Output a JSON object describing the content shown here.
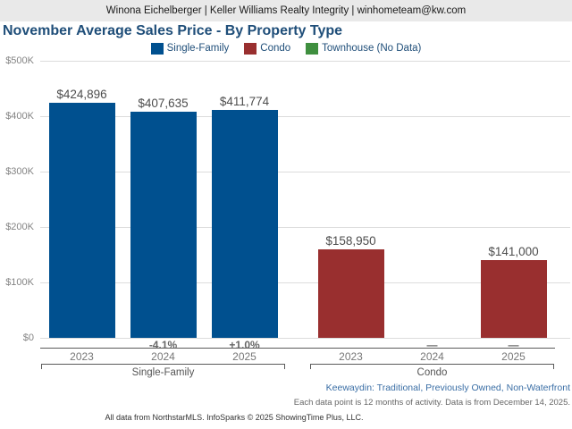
{
  "header": {
    "text": "Winona Eichelberger | Keller Williams Realty Integrity | winhometeam@kw.com"
  },
  "footer": {
    "filters": "Keewaydin: Traditional, Previously Owned, Non-Waterfront",
    "note": "Each data point is 12 months of activity. Data is from December 14, 2025.",
    "copyright": "All data from NorthstarMLS. InfoSparks © 2025 ShowingTime Plus, LLC."
  },
  "chart_data": {
    "type": "bar",
    "title": "November Average Sales Price - By Property Type",
    "xlabel": "",
    "ylabel": "",
    "ylim": [
      0,
      500000
    ],
    "ytick_labels": [
      "$0",
      "$100K",
      "$200K",
      "$300K",
      "$400K",
      "$500K"
    ],
    "grid": true,
    "legend_position": "top",
    "legend": [
      {
        "label": "Single-Family",
        "color": "#00508f"
      },
      {
        "label": "Condo",
        "color": "#992f2f"
      },
      {
        "label": "Townhouse (No Data)",
        "color": "#3f8f3f"
      }
    ],
    "groups": [
      {
        "name": "Single-Family",
        "color": "#00508f",
        "categories": [
          "2023",
          "2024",
          "2025"
        ],
        "values": [
          424896,
          407635,
          411774
        ],
        "value_labels": [
          "$424,896",
          "$407,635",
          "$411,774"
        ],
        "pct_change": [
          "",
          "-4.1%",
          "+1.0%"
        ]
      },
      {
        "name": "Condo",
        "color": "#992f2f",
        "categories": [
          "2023",
          "2024",
          "2025"
        ],
        "values": [
          158950,
          null,
          141000
        ],
        "value_labels": [
          "$158,950",
          "",
          "$141,000"
        ],
        "pct_change": [
          "",
          "—",
          "—"
        ]
      }
    ]
  }
}
